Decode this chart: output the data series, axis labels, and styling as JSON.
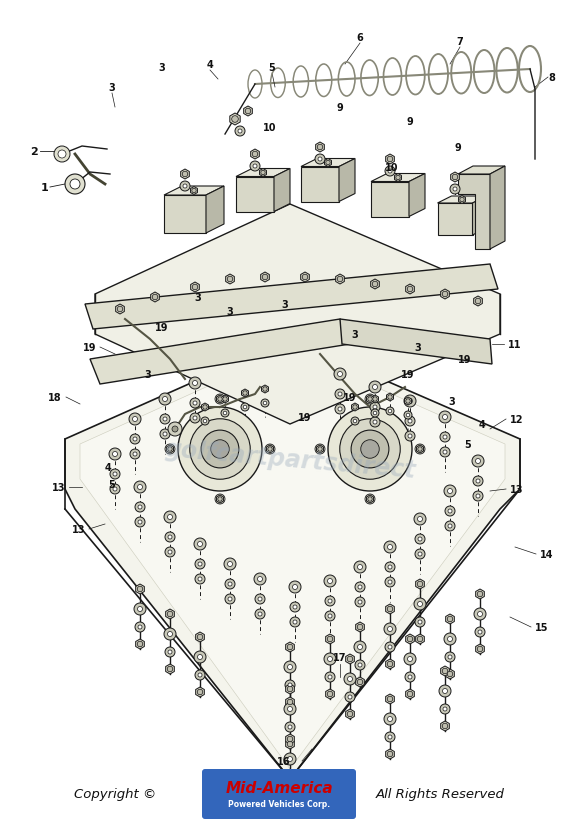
{
  "bg_color": "#ffffff",
  "line_color": "#1a1a1a",
  "component_color": "#444433",
  "fill_light": "#f0f0e8",
  "fill_mid": "#d8d8c8",
  "fill_dark": "#b0b0a0",
  "coil_color": "#888878",
  "copyright_text": "Copyright ©",
  "brand_text_1": "Mid-America",
  "brand_text_2": "Powered Vehicles Corp.",
  "rights_text": "All Rights Reserved",
  "brand_color_red": "#cc0000",
  "brand_bg_blue": "#3366bb",
  "watermark_text": "golfcartpartsdirect",
  "watermark_color": "#99aabb"
}
